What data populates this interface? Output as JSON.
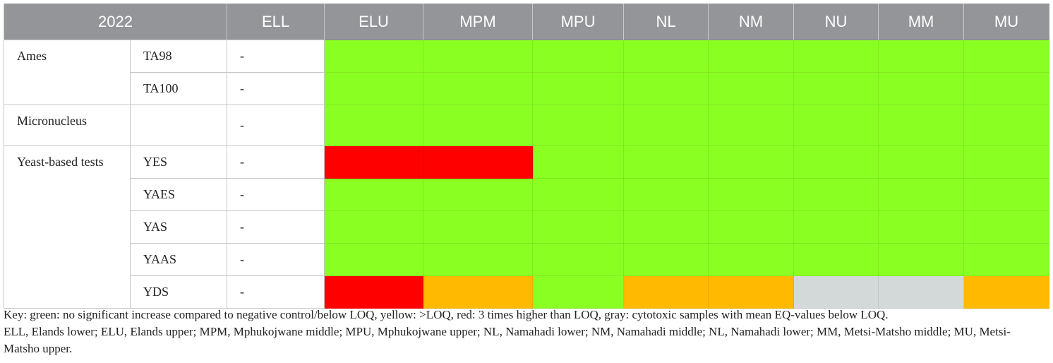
{
  "table": {
    "header": {
      "corner": "2022",
      "columns": [
        "ELL",
        "ELU",
        "MPM",
        "MPU",
        "NL",
        "NM",
        "NU",
        "MM",
        "MU"
      ]
    },
    "groups": [
      {
        "label": "Ames",
        "rows": [
          {
            "test": "TA98",
            "ell": "-",
            "colors": [
              "#8aff22",
              "#8aff22",
              "#8aff22",
              "#8aff22",
              "#8aff22",
              "#8aff22",
              "#8aff22",
              "#8aff22"
            ]
          },
          {
            "test": "TA100",
            "ell": "-",
            "colors": [
              "#8aff22",
              "#8aff22",
              "#8aff22",
              "#8aff22",
              "#8aff22",
              "#8aff22",
              "#8aff22",
              "#8aff22"
            ]
          }
        ]
      },
      {
        "label": "Micronucleus",
        "rows": [
          {
            "test": null,
            "ell": "-",
            "colors": [
              "#8aff22",
              "#8aff22",
              "#8aff22",
              "#8aff22",
              "#8aff22",
              "#8aff22",
              "#8aff22",
              "#8aff22"
            ]
          }
        ]
      },
      {
        "label": "Yeast-based tests",
        "rows": [
          {
            "test": "YES",
            "ell": "-",
            "colors": [
              "#ff0000",
              "#ff0000",
              "#8aff22",
              "#8aff22",
              "#8aff22",
              "#8aff22",
              "#8aff22",
              "#8aff22"
            ]
          },
          {
            "test": "YAES",
            "ell": "-",
            "colors": [
              "#8aff22",
              "#8aff22",
              "#8aff22",
              "#8aff22",
              "#8aff22",
              "#8aff22",
              "#8aff22",
              "#8aff22"
            ]
          },
          {
            "test": "YAS",
            "ell": "-",
            "colors": [
              "#8aff22",
              "#8aff22",
              "#8aff22",
              "#8aff22",
              "#8aff22",
              "#8aff22",
              "#8aff22",
              "#8aff22"
            ]
          },
          {
            "test": "YAAS",
            "ell": "-",
            "colors": [
              "#8aff22",
              "#8aff22",
              "#8aff22",
              "#8aff22",
              "#8aff22",
              "#8aff22",
              "#8aff22",
              "#8aff22"
            ]
          },
          {
            "test": "YDS",
            "ell": "-",
            "colors": [
              "#ff0000",
              "#ffba00",
              "#8aff22",
              "#ffba00",
              "#ffba00",
              "#d3d8d8",
              "#d3d8d8",
              "#ffba00"
            ]
          }
        ]
      }
    ]
  },
  "footnote": {
    "key": "Key: green: no significant increase compared to negative control/below LOQ, yellow: >LOQ, red: 3 times higher than LOQ, gray: cytotoxic samples with mean EQ-values below LOQ.",
    "abbreviations": "ELL, Elands lower; ELU, Elands upper; MPM, Mphukojwane middle; MPU, Mphukojwane upper; NL, Namahadi lower; NM, Namahadi middle; NL, Namahadi lower; MM, Metsi-Matsho middle; MU, Metsi-Matsho upper."
  }
}
